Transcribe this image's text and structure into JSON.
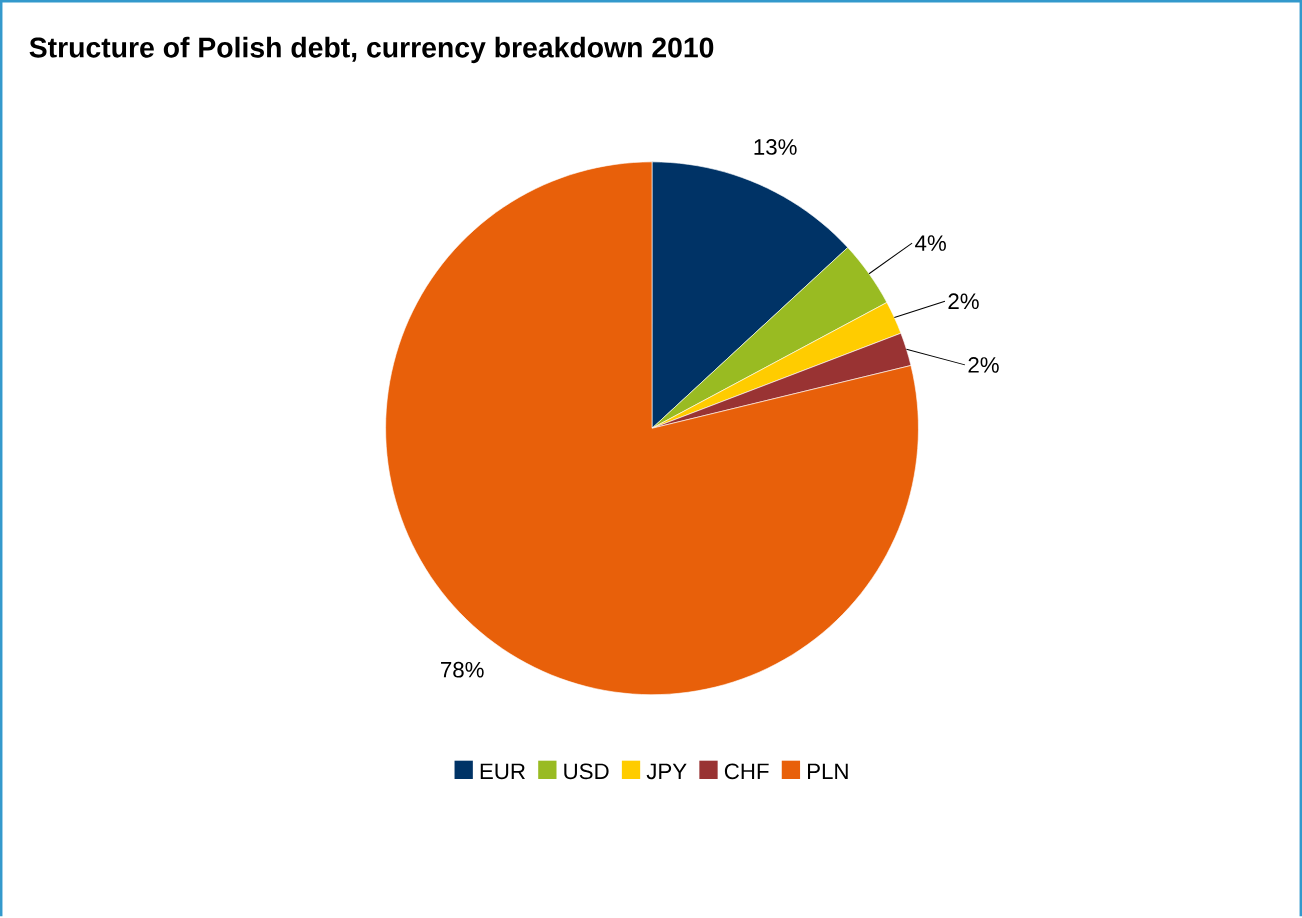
{
  "chart_data": {
    "type": "pie",
    "title": "Structure of Polish debt, currency breakdown 2010",
    "categories": [
      "EUR",
      "USD",
      "JPY",
      "CHF",
      "PLN"
    ],
    "values": [
      13,
      4,
      2,
      2,
      78
    ],
    "value_labels": [
      "13%",
      "4%",
      "2%",
      "2%",
      "78%"
    ],
    "colors": [
      "#003366",
      "#99bb22",
      "#ffcc00",
      "#993333",
      "#e8600a"
    ],
    "legend": "bottom"
  }
}
